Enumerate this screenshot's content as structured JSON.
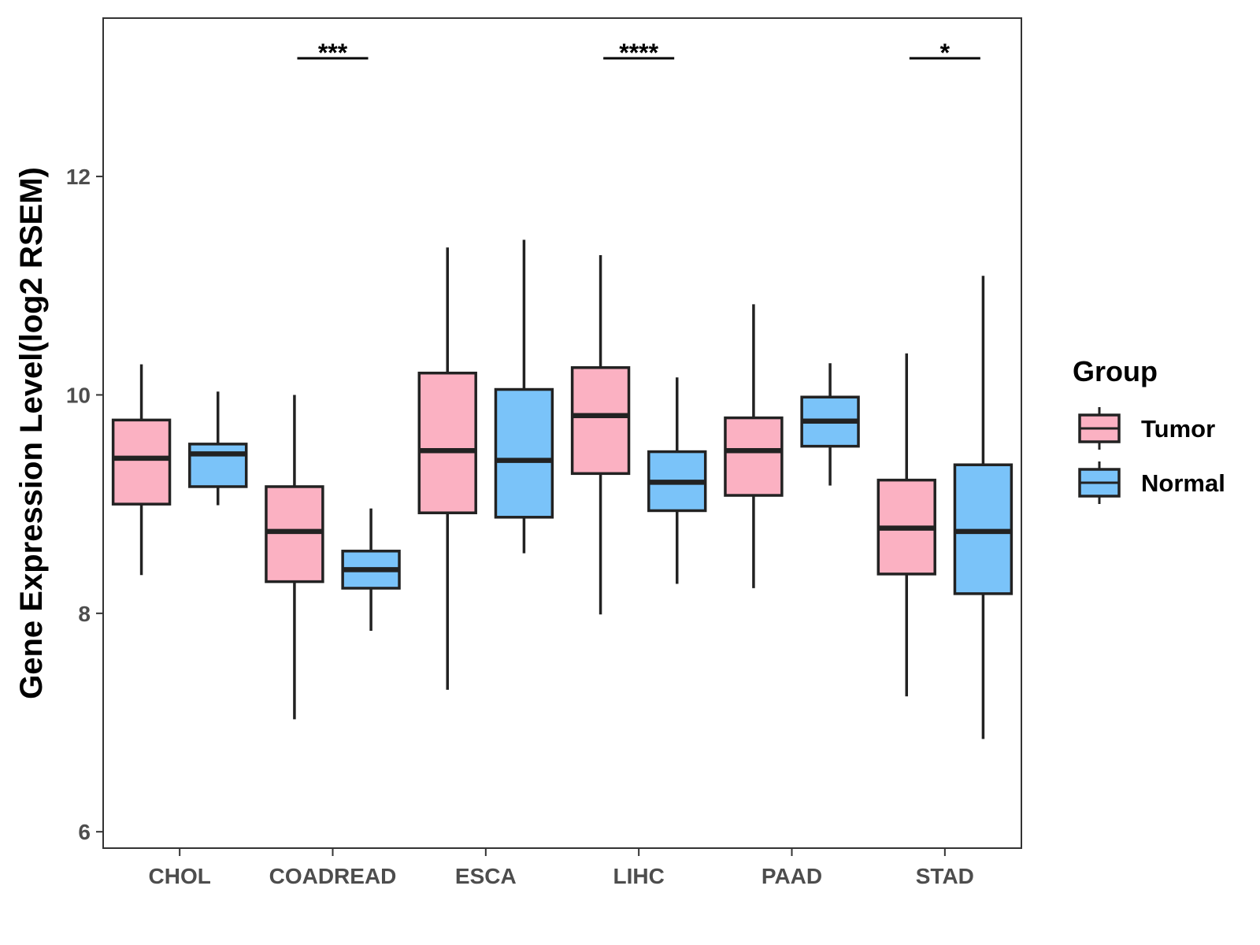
{
  "chart_data": {
    "type": "box",
    "title": "",
    "xlabel": "",
    "ylabel": "Gene Expression Level(log2 RSEM)",
    "ylim": [
      5.85,
      13.45
    ],
    "yticks": [
      6,
      8,
      10,
      12
    ],
    "ytick_labels": [
      "6",
      "8",
      "10",
      "12"
    ],
    "grid": false,
    "legend_position": "right",
    "categories": [
      "CHOL",
      "COADREAD",
      "ESCA",
      "LIHC",
      "PAAD",
      "STAD"
    ],
    "legend": {
      "title": "Group",
      "entries": [
        "Tumor",
        "Normal"
      ]
    },
    "series": [
      {
        "name": "Tumor",
        "color": "#fbb1c2",
        "boxes": [
          {
            "low": 8.35,
            "q1": 9.0,
            "median": 9.42,
            "q3": 9.77,
            "high": 10.28
          },
          {
            "low": 7.03,
            "q1": 8.29,
            "median": 8.75,
            "q3": 9.16,
            "high": 10.0
          },
          {
            "low": 7.3,
            "q1": 8.92,
            "median": 9.49,
            "q3": 10.2,
            "high": 11.35
          },
          {
            "low": 7.99,
            "q1": 9.28,
            "median": 9.81,
            "q3": 10.25,
            "high": 11.28
          },
          {
            "low": 8.23,
            "q1": 9.08,
            "median": 9.49,
            "q3": 9.79,
            "high": 10.83
          },
          {
            "low": 7.24,
            "q1": 8.36,
            "median": 8.78,
            "q3": 9.22,
            "high": 10.38
          }
        ]
      },
      {
        "name": "Normal",
        "color": "#7ac3f9",
        "boxes": [
          {
            "low": 8.99,
            "q1": 9.16,
            "median": 9.46,
            "q3": 9.55,
            "high": 10.03
          },
          {
            "low": 7.84,
            "q1": 8.23,
            "median": 8.4,
            "q3": 8.57,
            "high": 8.96
          },
          {
            "low": 8.55,
            "q1": 8.88,
            "median": 9.4,
            "q3": 10.05,
            "high": 11.42
          },
          {
            "low": 8.27,
            "q1": 8.94,
            "median": 9.2,
            "q3": 9.48,
            "high": 10.16
          },
          {
            "low": 9.17,
            "q1": 9.53,
            "median": 9.76,
            "q3": 9.98,
            "high": 10.29
          },
          {
            "low": 6.85,
            "q1": 8.18,
            "median": 8.75,
            "q3": 9.36,
            "high": 11.09
          }
        ]
      }
    ],
    "annotations": [
      {
        "category": "COADREAD",
        "text": "***"
      },
      {
        "category": "LIHC",
        "text": "****"
      },
      {
        "category": "STAD",
        "text": "*"
      }
    ]
  }
}
